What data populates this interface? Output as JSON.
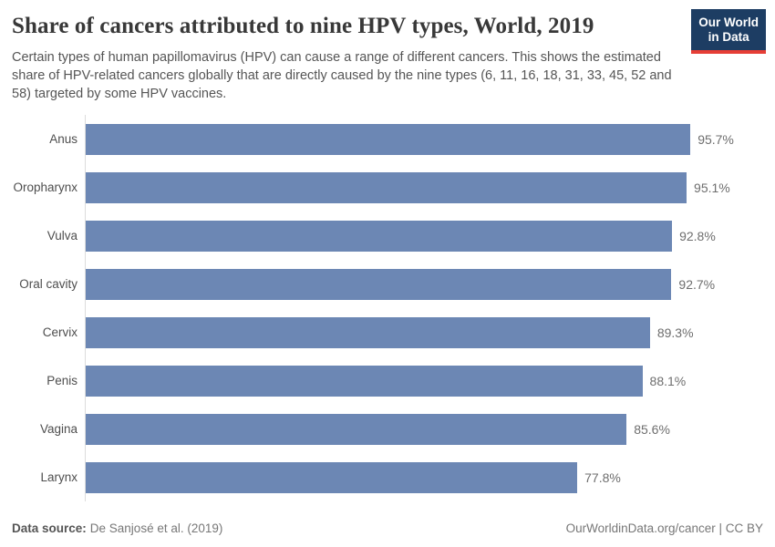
{
  "header": {
    "title": "Share of cancers attributed to nine HPV types, World, 2019",
    "subtitle": "Certain types of human papillomavirus (HPV) can cause a range of different cancers. This shows the estimated share of HPV-related cancers globally that are directly caused by the nine types (6, 11, 16, 18, 31, 33, 45, 52 and 58) targeted by some HPV vaccines.",
    "logo": {
      "line1": "Our World",
      "line2": "in Data",
      "background_color": "#1d3d63",
      "accent_color": "#e63e36"
    }
  },
  "chart_data": {
    "type": "bar",
    "orientation": "horizontal",
    "title": "Share of cancers attributed to nine HPV types, World, 2019",
    "xlabel": "",
    "ylabel": "",
    "xlim": [
      0,
      100
    ],
    "grid": false,
    "legend": false,
    "bar_color": "#6c87b4",
    "categories": [
      "Anus",
      "Oropharynx",
      "Vulva",
      "Oral cavity",
      "Cervix",
      "Penis",
      "Vagina",
      "Larynx"
    ],
    "values": [
      95.7,
      95.1,
      92.8,
      92.7,
      89.3,
      88.1,
      85.6,
      77.8
    ],
    "value_labels": [
      "95.7%",
      "95.1%",
      "92.8%",
      "92.7%",
      "89.3%",
      "88.1%",
      "85.6%",
      "77.8%"
    ]
  },
  "footer": {
    "datasource_label": "Data source:",
    "datasource_value": "De Sanjosé et al. (2019)",
    "license": "OurWorldinData.org/cancer | CC BY"
  }
}
